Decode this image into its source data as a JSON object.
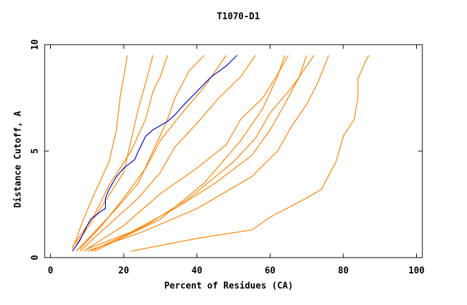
{
  "chart_data": {
    "type": "line",
    "title": "T1070-D1",
    "x_label": "Percent of Residues (CA)",
    "y_label": "Distance Cutoff, A",
    "xlim": [
      -1.6,
      101.6
    ],
    "ylim": [
      0,
      10
    ],
    "xticks": [
      0,
      20,
      40,
      60,
      80,
      100
    ],
    "yticks": [
      0,
      5,
      10
    ],
    "series": [
      {
        "color": "#ff8000",
        "x": [
          22,
          40,
          55,
          60,
          70,
          74,
          78,
          80,
          83,
          84,
          84,
          86,
          87
        ],
        "values": [
          0.3,
          0.9,
          1.3,
          1.9,
          2.8,
          3.2,
          4.5,
          5.7,
          6.5,
          7.5,
          8.4,
          9.2,
          9.5
        ]
      },
      {
        "color": "#ff8000",
        "x": [
          10,
          25,
          40,
          55,
          62,
          66,
          70,
          73,
          76
        ],
        "values": [
          0.3,
          1.2,
          2.3,
          3.8,
          5,
          6.2,
          7.2,
          8.2,
          9.5
        ]
      },
      {
        "color": "#ff8000",
        "x": [
          6,
          9,
          12,
          16,
          18,
          19,
          20,
          21
        ],
        "values": [
          0.4,
          1.8,
          3,
          4.5,
          6,
          7.5,
          8.5,
          9.5
        ]
      },
      {
        "color": "#ff8000",
        "x": [
          7,
          12,
          18,
          24,
          28,
          32,
          34,
          38,
          42
        ],
        "values": [
          0.3,
          1.2,
          2.3,
          3.5,
          5,
          6.5,
          7.5,
          8.8,
          9.5
        ]
      },
      {
        "color": "#ff8000",
        "x": [
          8,
          15,
          24,
          30,
          34,
          40,
          46,
          52,
          56
        ],
        "values": [
          0.3,
          1.4,
          2.8,
          4,
          5.2,
          6.3,
          7.5,
          8.5,
          9.5
        ]
      },
      {
        "color": "#ff8000",
        "x": [
          9,
          20,
          30,
          40,
          48,
          52,
          58,
          62,
          65
        ],
        "values": [
          0.3,
          1.5,
          3,
          4.2,
          5.3,
          6.5,
          7.5,
          8.6,
          9.5
        ]
      },
      {
        "color": "#ff8000",
        "x": [
          10,
          22,
          35,
          45,
          55,
          60,
          64,
          68,
          70
        ],
        "values": [
          0.4,
          1.2,
          2.4,
          3.5,
          4.8,
          6,
          7.2,
          8.5,
          9.5
        ]
      },
      {
        "color": "#ff8000",
        "x": [
          6,
          12,
          16,
          22,
          26,
          28,
          30,
          32
        ],
        "values": [
          0.5,
          2,
          3.4,
          5,
          6.5,
          7.8,
          8.5,
          9.5
        ]
      },
      {
        "color": "#ff8000",
        "x": [
          8,
          14,
          20,
          26,
          30,
          36,
          42,
          46,
          48
        ],
        "values": [
          0.4,
          1.5,
          2.8,
          4.2,
          5.5,
          6.8,
          8,
          9,
          9.5
        ]
      },
      {
        "color": "#ff8000",
        "x": [
          11,
          26,
          38,
          50,
          56,
          60,
          66,
          72
        ],
        "values": [
          0.3,
          1.5,
          2.8,
          4.5,
          5.6,
          6.8,
          8,
          9.5
        ]
      },
      {
        "color": "#ff8000",
        "x": [
          7,
          14,
          20,
          22,
          24,
          26,
          28
        ],
        "values": [
          0.6,
          2.4,
          4,
          5.5,
          7,
          8.2,
          9.5
        ]
      },
      {
        "color": "#ff8000",
        "x": [
          12,
          30,
          42,
          52,
          58,
          62,
          64
        ],
        "values": [
          0.3,
          1.8,
          3.5,
          5.5,
          7,
          8.5,
          9.5
        ]
      },
      {
        "color": "#0000cc",
        "x": [
          6,
          8,
          10,
          11,
          14,
          15,
          15,
          16,
          18,
          20,
          23,
          24,
          26,
          28,
          32,
          34,
          36,
          40,
          44,
          48,
          51
        ],
        "values": [
          0.3,
          0.8,
          1.5,
          1.8,
          2.2,
          2.3,
          2.8,
          3.2,
          3.8,
          4.2,
          4.6,
          5,
          5.7,
          6,
          6.4,
          6.7,
          7.1,
          7.8,
          8.5,
          9,
          9.5
        ]
      }
    ]
  }
}
